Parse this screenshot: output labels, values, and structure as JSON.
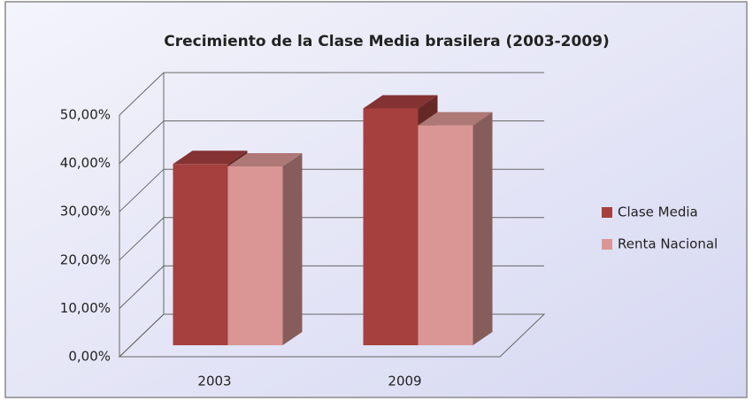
{
  "chart_data": {
    "type": "bar3d",
    "title": "Crecimiento de la Clase Media brasilera (2003-2009)",
    "categories": [
      "2003",
      "2009"
    ],
    "series": [
      {
        "name": "Clase Media",
        "color": "#a5403e",
        "values": [
          37.5,
          49
        ]
      },
      {
        "name": "Renta Nacional",
        "color": "#d99694",
        "values": [
          37,
          45.5
        ]
      }
    ],
    "ylim": [
      0,
      50
    ],
    "yticks": [
      {
        "value": 0,
        "label": "0,00%"
      },
      {
        "value": 10,
        "label": "10,00%"
      },
      {
        "value": 20,
        "label": "20,00%"
      },
      {
        "value": 30,
        "label": "30,00%"
      },
      {
        "value": 40,
        "label": "40,00%"
      },
      {
        "value": 50,
        "label": "50,00%"
      }
    ],
    "grid": true,
    "legend": "right"
  }
}
